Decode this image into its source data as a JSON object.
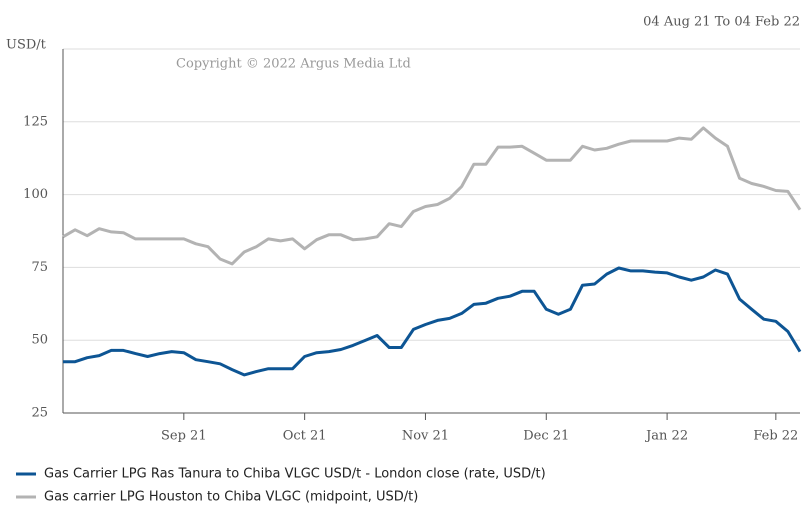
{
  "chart_data": {
    "type": "line",
    "title": "04 Aug 21 To 04 Feb 22",
    "y_label": "USD/t",
    "annotation": "Copyright © 2022 Argus Media Ltd",
    "categories": [
      null,
      null,
      null,
      null,
      null,
      null,
      null,
      null,
      null,
      null,
      "Sep 21",
      null,
      null,
      null,
      null,
      null,
      null,
      null,
      null,
      null,
      "Oct 21",
      null,
      null,
      null,
      null,
      null,
      null,
      null,
      null,
      null,
      "Nov 21",
      null,
      null,
      null,
      null,
      null,
      null,
      null,
      null,
      null,
      "Dec 21",
      null,
      null,
      null,
      null,
      null,
      null,
      null,
      null,
      null,
      "Jan 22",
      null,
      null,
      null,
      null,
      null,
      null,
      null,
      null,
      "Feb 22",
      null,
      null
    ],
    "series": [
      {
        "name": "Gas Carrier LPG Ras Tanura to Chiba VLGC USD/t - London close (rate, USD/t)",
        "color": "#0d5594",
        "values": [
          42.6,
          42.6,
          44,
          44.7,
          46.5,
          46.5,
          45.4,
          44.4,
          45.4,
          46.1,
          45.7,
          43.3,
          42.6,
          41.9,
          39.9,
          38.1,
          39.2,
          40.2,
          40.2,
          40.2,
          44.4,
          45.7,
          46.1,
          46.8,
          48.2,
          49.9,
          51.6,
          47.5,
          47.5,
          53.7,
          55.4,
          56.8,
          57.5,
          59.2,
          62.3,
          62.7,
          64.4,
          65.1,
          66.8,
          66.8,
          60.6,
          58.9,
          60.6,
          68.9,
          69.3,
          72.7,
          74.8,
          73.8,
          73.8,
          73.4,
          73.1,
          71.7,
          70.6,
          71.7,
          74.1,
          72.7,
          64.1,
          60.6,
          57.2,
          56.5,
          53,
          46.1
        ]
      },
      {
        "name": "Gas carrier LPG Houston to Chiba VLGC (midpoint, USD/t)",
        "color": "#b3b3b3",
        "values": [
          85.5,
          87.9,
          85.9,
          88.3,
          87.2,
          86.9,
          84.8,
          84.8,
          84.8,
          84.8,
          84.8,
          83.1,
          82.1,
          77.9,
          76.2,
          80.3,
          82.1,
          84.8,
          84.1,
          84.8,
          81.4,
          84.5,
          86.2,
          86.2,
          84.5,
          84.8,
          85.5,
          90,
          89,
          94.2,
          95.9,
          96.6,
          98.7,
          102.8,
          110.4,
          110.4,
          116.3,
          116.3,
          116.6,
          114.2,
          111.8,
          111.8,
          111.8,
          116.6,
          115.3,
          115.9,
          117.3,
          118.4,
          118.4,
          118.4,
          118.4,
          119.4,
          119,
          122.9,
          119.4,
          116.6,
          105.6,
          103.8,
          102.8,
          101.4,
          101.1,
          94.8
        ]
      }
    ],
    "ylim": [
      25,
      150
    ],
    "yticks": [
      25,
      50,
      75,
      100,
      125
    ],
    "grid": true
  }
}
